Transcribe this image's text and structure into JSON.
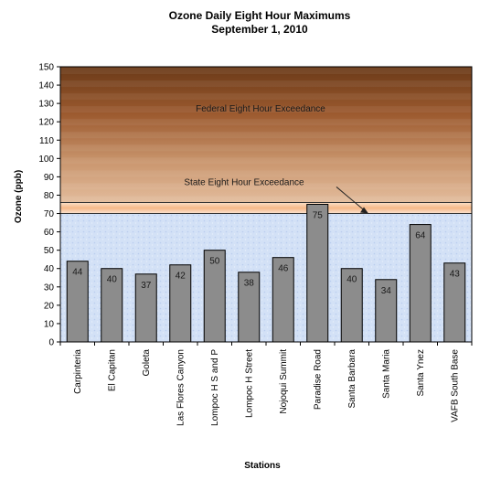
{
  "chart_data": {
    "type": "bar",
    "title": "Ozone Daily Eight Hour Maximums",
    "subtitle": "September 1, 2010",
    "xlabel": "Stations",
    "ylabel": "Ozone (ppb)",
    "ylim": [
      0,
      150
    ],
    "yticks": [
      0,
      10,
      20,
      30,
      40,
      50,
      60,
      70,
      80,
      90,
      100,
      110,
      120,
      130,
      140,
      150
    ],
    "categories": [
      "Carpinteria",
      "El Capitan",
      "Goleta",
      "Las Flores Canyon",
      "Lompoc H S and P",
      "Lompoc H Street",
      "Nojoqui Summit",
      "Paradise Road",
      "Santa Barbara",
      "Santa Maria",
      "Santa Ynez",
      "VAFB South Base"
    ],
    "values": [
      44,
      40,
      37,
      42,
      50,
      38,
      46,
      75,
      40,
      34,
      64,
      43
    ],
    "bands": [
      {
        "label": "",
        "from": 0,
        "to": 70,
        "color": "#d6e3f7"
      },
      {
        "label": "State Eight Hour Exceedance",
        "from": 70,
        "to": 76,
        "color": "#f7c79e"
      },
      {
        "label": "Federal Eight Hour Exceedance",
        "from": 76,
        "to": 150,
        "color": "#a86a3e"
      }
    ],
    "bar_color": "#8c8c8c",
    "grid": false,
    "legend": "none"
  }
}
